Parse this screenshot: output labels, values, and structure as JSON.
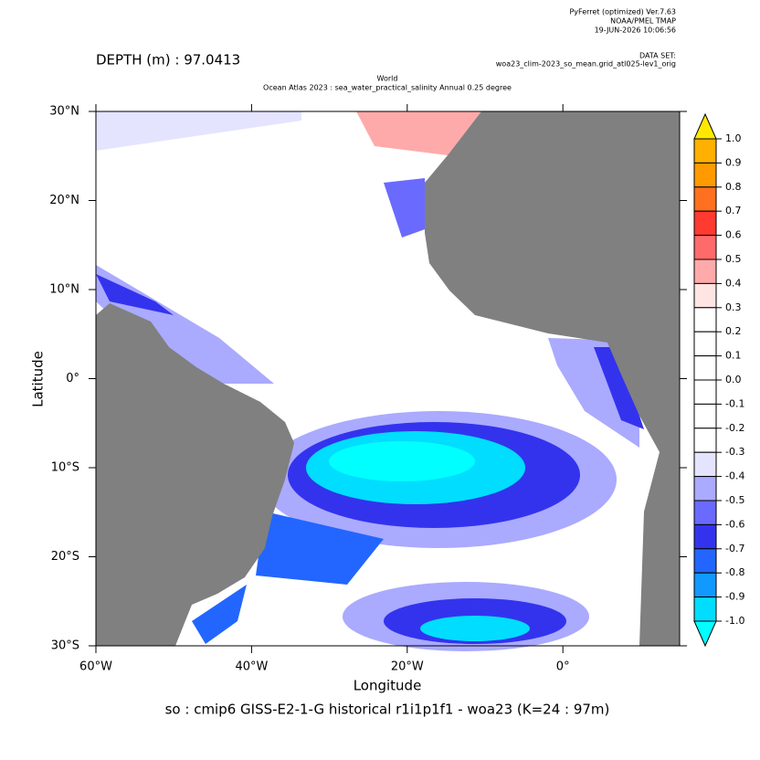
{
  "chart_data": {
    "type": "map",
    "header": {
      "software": "PyFerret (optimized) Ver.7.63",
      "lab": "NOAA/PMEL TMAP",
      "timestamp": "19-JUN-2026 10:06:56",
      "dataset_label": "DATA SET:",
      "dataset": "woa23_clim-2023_so_mean.grid_atl025-lev1_orig"
    },
    "depth": "DEPTH (m) : 97.0413",
    "title": "World",
    "subtitle": "Ocean Atlas 2023 : sea_water_practical_salinity Annual  0.25 degree",
    "x_label": "Longitude",
    "y_label": "Latitude",
    "caption": "so : cmip6 GISS-E2-1-G historical r1i1p1f1 - woa23  (K=24 : 97m)",
    "xlim": [
      -60,
      15
    ],
    "ylim": [
      -30,
      30
    ],
    "xticks": [
      {
        "value": -60,
        "label": "60°W"
      },
      {
        "value": -40,
        "label": "40°W"
      },
      {
        "value": -20,
        "label": "20°W"
      },
      {
        "value": 0,
        "label": "0°"
      }
    ],
    "yticks": [
      {
        "value": 30,
        "label": "30°N"
      },
      {
        "value": 20,
        "label": "20°N"
      },
      {
        "value": 10,
        "label": "10°N"
      },
      {
        "value": 0,
        "label": "0°"
      },
      {
        "value": -10,
        "label": "10°S"
      },
      {
        "value": -20,
        "label": "20°S"
      },
      {
        "value": -30,
        "label": "30°S"
      }
    ],
    "colorbar": {
      "levels": [
        {
          "value": 1,
          "label": "1.0"
        },
        0.9,
        0.8,
        0.7,
        0.6,
        0.5,
        0.4,
        0.3,
        0.2,
        0.1,
        {
          "value": 0,
          "label": "0.0"
        },
        -0.1,
        -0.2,
        -0.3,
        -0.4,
        -0.5,
        -0.6,
        -0.7,
        -0.8,
        -0.9,
        {
          "value": -1,
          "label": "-1.0"
        }
      ],
      "colors": [
        "#ffe800",
        "#ffb000",
        "#ff9a00",
        "#ff7020",
        "#ff3a30",
        "#ff6a6a",
        "#ffaaaa",
        "#ffe4e4",
        "#ffffff",
        "#ffffff",
        "#ffffff",
        "#ffffff",
        "#ffffff",
        "#ffffff",
        "#e4e4ff",
        "#aaaaff",
        "#6a6aff",
        "#3333ee",
        "#2266ff",
        "#1199ff",
        "#00ddff",
        "#00ffff"
      ]
    }
  }
}
